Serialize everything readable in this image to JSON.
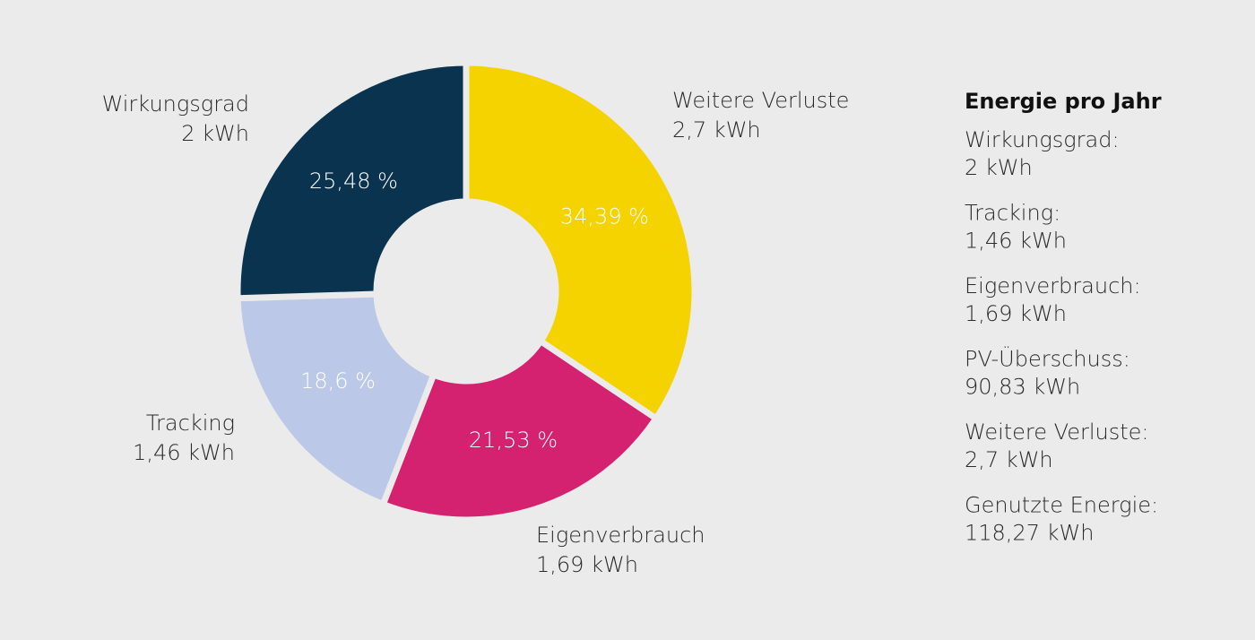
{
  "chart_data": {
    "type": "donut",
    "categories": [
      "Weitere Verluste",
      "Eigenverbrauch",
      "Tracking",
      "Wirkungsgrad"
    ],
    "values": [
      34.39,
      21.53,
      18.6,
      25.48
    ],
    "value_labels": [
      "34,39 %",
      "21,53 %",
      "18,6 %",
      "25,48 %"
    ],
    "sublabels": [
      "2,7 kWh",
      "1,69 kWh",
      "1,46 kWh",
      "2 kWh"
    ],
    "colors": [
      "#f5d300",
      "#d42271",
      "#bcc8e8",
      "#0a3350"
    ]
  },
  "summary": {
    "title": "Energie pro Jahr",
    "items": [
      {
        "label": "Wirkungsgrad:",
        "value": "2 kWh"
      },
      {
        "label": "Tracking:",
        "value": "1,46 kWh"
      },
      {
        "label": "Eigenverbrauch:",
        "value": "1,69 kWh"
      },
      {
        "label": "PV-Überschuss:",
        "value": "90,83 kWh"
      },
      {
        "label": "Weitere Verluste:",
        "value": "2,7 kWh"
      },
      {
        "label": "Genutzte Energie:",
        "value": "118,27 kWh"
      }
    ]
  }
}
